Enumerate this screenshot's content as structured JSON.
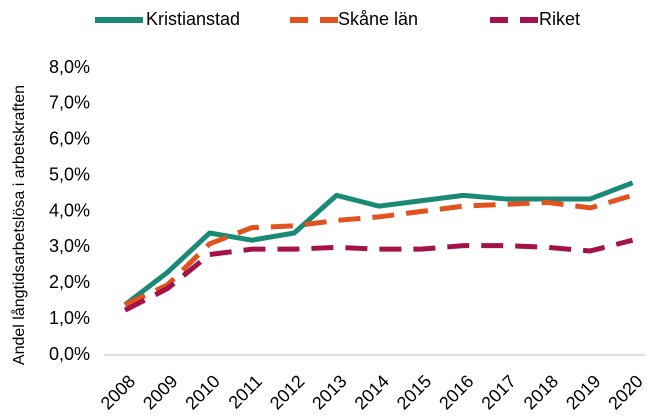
{
  "chart_data": {
    "type": "line",
    "y_label": "Andel långtidsarbetslösa i arbetskraften",
    "categories": [
      "2008",
      "2009",
      "2010",
      "2011",
      "2012",
      "2013",
      "2014",
      "2015",
      "2016",
      "2017",
      "2018",
      "2019",
      "2020"
    ],
    "series": [
      {
        "name": "Kristianstad",
        "color": "#1a8a77",
        "style": "solid",
        "values": [
          1.4,
          2.3,
          3.4,
          3.2,
          3.4,
          4.45,
          4.15,
          4.3,
          4.45,
          4.35,
          4.35,
          4.35,
          4.8
        ]
      },
      {
        "name": "Skåne län",
        "color": "#e0531e",
        "style": "dashed",
        "values": [
          1.4,
          1.95,
          3.1,
          3.55,
          3.6,
          3.75,
          3.85,
          4.0,
          4.15,
          4.2,
          4.25,
          4.1,
          4.45
        ]
      },
      {
        "name": "Riket",
        "color": "#a4124a",
        "style": "dashed",
        "values": [
          1.25,
          1.85,
          2.8,
          2.95,
          2.95,
          3.0,
          2.95,
          2.95,
          3.05,
          3.05,
          3.0,
          2.9,
          3.2
        ]
      }
    ],
    "ylim": [
      0,
      8
    ],
    "yticks": [
      {
        "value": 0,
        "label": "0,0%"
      },
      {
        "value": 1,
        "label": "1,0%"
      },
      {
        "value": 2,
        "label": "2,0%"
      },
      {
        "value": 3,
        "label": "3,0%"
      },
      {
        "value": 4,
        "label": "4,0%"
      },
      {
        "value": 5,
        "label": "5,0%"
      },
      {
        "value": 6,
        "label": "6,0%"
      },
      {
        "value": 7,
        "label": "7,0%"
      },
      {
        "value": 8,
        "label": "8,0%"
      }
    ],
    "legend": "top"
  }
}
